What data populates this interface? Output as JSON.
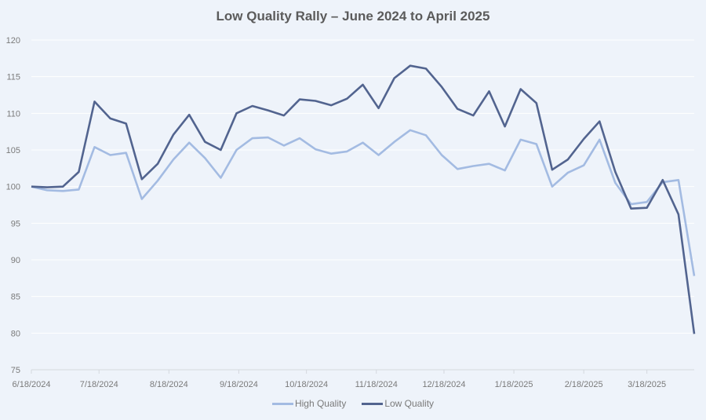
{
  "chart_data": {
    "type": "line",
    "title": "Low Quality Rally – June 2024 to April 2025",
    "xlabel": "",
    "ylabel": "",
    "ylim": [
      75,
      120
    ],
    "yticks": [
      75,
      80,
      85,
      90,
      95,
      100,
      105,
      110,
      115,
      120
    ],
    "xlim": [
      "2024-06-18",
      "2025-04-08"
    ],
    "xtick_dates": [
      "2024-06-18",
      "2024-07-18",
      "2024-08-18",
      "2024-09-18",
      "2024-10-18",
      "2024-11-18",
      "2024-12-18",
      "2025-01-18",
      "2025-02-18",
      "2025-03-18"
    ],
    "xtick_labels": [
      "6/18/2024",
      "7/18/2024",
      "8/18/2024",
      "9/18/2024",
      "10/18/2024",
      "11/18/2024",
      "12/18/2024",
      "1/18/2025",
      "2/18/2025",
      "3/18/2025"
    ],
    "grid": true,
    "legend_position": "bottom",
    "x": [
      "2024-06-18",
      "2024-06-25",
      "2024-07-02",
      "2024-07-09",
      "2024-07-16",
      "2024-07-23",
      "2024-07-30",
      "2024-08-06",
      "2024-08-13",
      "2024-08-20",
      "2024-08-27",
      "2024-09-03",
      "2024-09-10",
      "2024-09-17",
      "2024-09-24",
      "2024-10-01",
      "2024-10-08",
      "2024-10-15",
      "2024-10-22",
      "2024-10-29",
      "2024-11-05",
      "2024-11-12",
      "2024-11-19",
      "2024-11-26",
      "2024-12-03",
      "2024-12-10",
      "2024-12-17",
      "2024-12-24",
      "2024-12-31",
      "2025-01-07",
      "2025-01-14",
      "2025-01-21",
      "2025-01-28",
      "2025-02-04",
      "2025-02-11",
      "2025-02-18",
      "2025-02-25",
      "2025-03-04",
      "2025-03-11",
      "2025-03-18",
      "2025-03-25",
      "2025-04-01",
      "2025-04-08"
    ],
    "series": [
      {
        "name": "High Quality",
        "color": "#a3bbe2",
        "values": [
          100,
          99.5,
          99.4,
          99.6,
          105.4,
          104.3,
          104.6,
          98.3,
          100.8,
          103.7,
          106,
          103.9,
          101.2,
          105,
          106.6,
          106.7,
          105.6,
          106.6,
          105.1,
          104.5,
          104.8,
          106,
          104.3,
          106.1,
          107.7,
          107,
          104.3,
          102.4,
          102.8,
          103.1,
          102.2,
          106.4,
          105.8,
          100,
          101.9,
          102.9,
          106.4,
          100.5,
          97.6,
          97.9,
          100.6,
          100.9,
          87.8
        ]
      },
      {
        "name": "Low Quality",
        "color": "#52648f",
        "values": [
          100,
          99.9,
          100,
          102,
          111.6,
          109.3,
          108.6,
          101,
          103.1,
          107.1,
          109.8,
          106.1,
          105,
          110,
          111,
          110.4,
          109.7,
          111.9,
          111.7,
          111.1,
          112,
          113.9,
          110.7,
          114.8,
          116.5,
          116.1,
          113.6,
          110.6,
          109.7,
          113,
          108.2,
          113.3,
          111.4,
          102.3,
          103.7,
          106.5,
          108.9,
          102,
          97,
          97.1,
          100.9,
          96.2,
          79.9
        ]
      }
    ]
  }
}
